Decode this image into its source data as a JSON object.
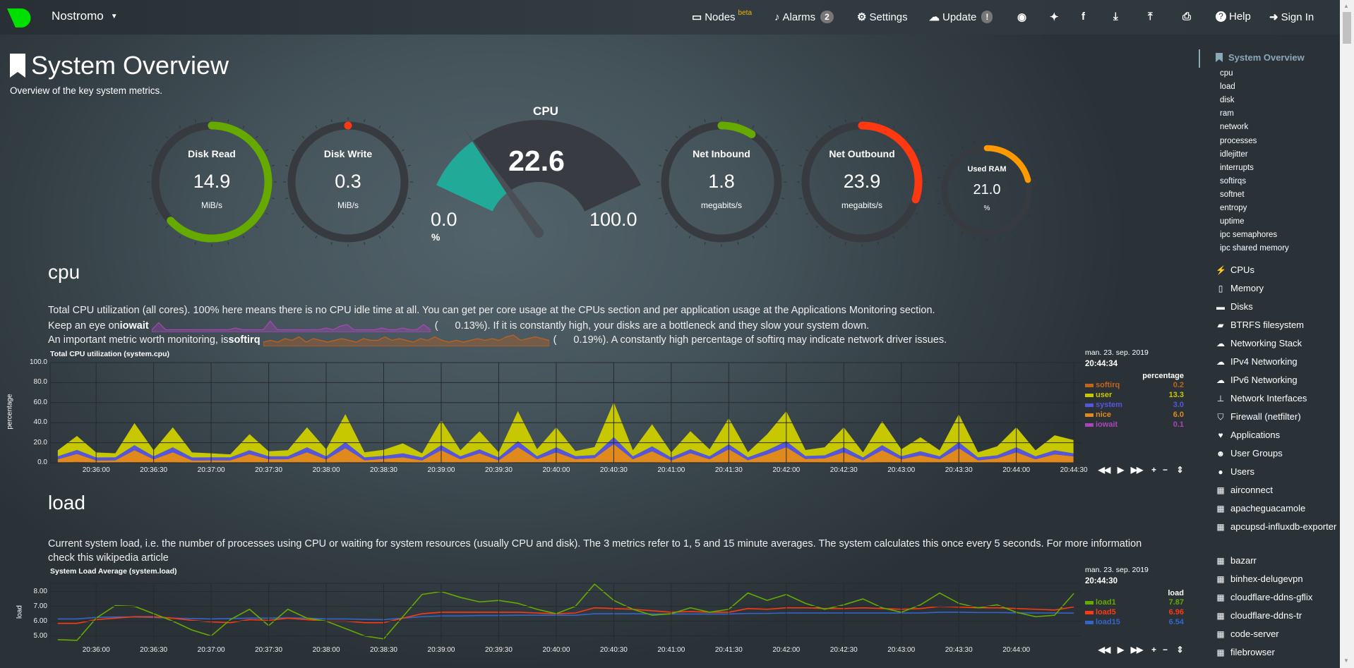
{
  "nav": {
    "brand": "Nostromo",
    "items": [
      {
        "label": "Nodes",
        "sup": "beta",
        "icon": "monitor-icon"
      },
      {
        "label": "Alarms",
        "badge": "2",
        "icon": "bell-icon"
      },
      {
        "label": "Settings",
        "icon": "gear-icon"
      },
      {
        "label": "Update",
        "badge": "!",
        "icon": "cloud-download-icon"
      },
      {
        "label": "",
        "icon": "github-icon"
      },
      {
        "label": "",
        "icon": "twitter-icon"
      },
      {
        "label": "",
        "icon": "facebook-icon"
      },
      {
        "label": "",
        "icon": "download-icon"
      },
      {
        "label": "",
        "icon": "upload-icon"
      },
      {
        "label": "",
        "icon": "print-icon"
      },
      {
        "label": "Help",
        "icon": "question-icon"
      },
      {
        "label": "Sign In",
        "icon": "sign-in-icon"
      }
    ],
    "brand_color": "#00e000"
  },
  "page": {
    "title": "System Overview",
    "subtitle": "Overview of the key system metrics."
  },
  "gauges": [
    {
      "title": "Disk Read",
      "value": "14.9",
      "unit": "MiB/s",
      "fill": 0.63,
      "color": "#66aa00"
    },
    {
      "title": "Disk Write",
      "value": "0.3",
      "unit": "MiB/s",
      "fill": 0.0,
      "color": "#fe3912"
    },
    {
      "title": "Net Inbound",
      "value": "1.8",
      "unit": "megabits/s",
      "fill": 0.09,
      "color": "#66aa00"
    },
    {
      "title": "Net Outbound",
      "value": "23.9",
      "unit": "megabits/s",
      "fill": 0.3,
      "color": "#fe3912"
    },
    {
      "title": "Used RAM",
      "value": "21.0",
      "unit": "%",
      "fill": 0.21,
      "color": "#ff9900"
    }
  ],
  "cpu_gauge": {
    "title": "CPU",
    "value": "22.6",
    "min": "0.0",
    "max": "100.0",
    "unit": "%",
    "percent": 22.6,
    "color": "#22aa99"
  },
  "cpu_section": {
    "heading": "cpu",
    "line1": "Total CPU utilization (all cores). 100% here means there is no CPU idle time at all. You can get per core usage at the CPUs section and per application usage at the Applications Monitoring section.",
    "line2_pre": "Keep an eye on ",
    "line2_bold": "iowait",
    "line2_val": "0.13%",
    "line2_post": "). If it is constantly high, your disks are a bottleneck and they slow your system down.",
    "line3_pre": "An important metric worth monitoring, is ",
    "line3_bold": "softirq",
    "line3_val": "0.19%",
    "line3_post": "). A constantly high percentage of softirq may indicate network driver issues.",
    "paren_open": "(",
    "iowait_spark": [
      0.1,
      0.5,
      0.1,
      0.1,
      0.1,
      0.1,
      0.1,
      0.1,
      0.1,
      0.1,
      0.1,
      0.1,
      0.2,
      0.1,
      0.1,
      0.1,
      0.1,
      0.6,
      0.1,
      0.1,
      0.1,
      0.1,
      0.1,
      0.1,
      0.1,
      0.2,
      0.1,
      0.3,
      0.4,
      0.1,
      0.1,
      0.1,
      0.1,
      0.2,
      0.1,
      0.1,
      0.2,
      0.1,
      0.1,
      0.4,
      0.1
    ],
    "softirq_spark": [
      0.2,
      0.3,
      0.2,
      0.4,
      0.3,
      0.5,
      0.2,
      0.4,
      0.3,
      0.2,
      0.3,
      0.4,
      0.3,
      0.2,
      0.4,
      0.3,
      0.3,
      0.5,
      0.3,
      0.4,
      0.3,
      0.2,
      0.4,
      0.3,
      0.5,
      0.3,
      0.2,
      0.3,
      0.2,
      0.3,
      0.4,
      0.3,
      0.4,
      0.3,
      0.5,
      0.6,
      0.3,
      0.4,
      0.5,
      0.4,
      0.3
    ]
  },
  "load_section": {
    "heading": "load",
    "text1": "Current system load, i.e. the number of processes using CPU or waiting for system resources (usually CPU and disk). The 3 metrics refer to 1, 5 and 15 minute averages. The system calculates this once every 5 seconds. For more information check this",
    "text2": "wikipedia article"
  },
  "chart_data": [
    {
      "type": "area",
      "stacked": true,
      "title": "Total CPU utilization (system.cpu)",
      "ylabel": "percentage",
      "ylim": [
        0,
        100
      ],
      "yticks": [
        "0.0",
        "20.0",
        "40.0",
        "60.0",
        "80.0",
        "100.0"
      ],
      "xticks": [
        "20:36:00",
        "20:36:30",
        "20:37:00",
        "20:37:30",
        "20:38:00",
        "20:38:30",
        "20:39:00",
        "20:39:30",
        "20:40:00",
        "20:40:30",
        "20:41:00",
        "20:41:30",
        "20:42:00",
        "20:42:30",
        "20:43:00",
        "20:43:30",
        "20:44:00",
        "20:44:30"
      ],
      "xrange": [
        "20:35:36",
        "20:44:34"
      ],
      "grid": true,
      "x": [
        "20:35:40",
        "20:35:50",
        "20:36:00",
        "20:36:10",
        "20:36:20",
        "20:36:30",
        "20:36:40",
        "20:36:50",
        "20:37:00",
        "20:37:10",
        "20:37:20",
        "20:37:30",
        "20:37:40",
        "20:37:50",
        "20:38:00",
        "20:38:10",
        "20:38:20",
        "20:38:30",
        "20:38:40",
        "20:38:50",
        "20:39:00",
        "20:39:10",
        "20:39:20",
        "20:39:30",
        "20:39:40",
        "20:39:50",
        "20:40:00",
        "20:40:10",
        "20:40:20",
        "20:40:30",
        "20:40:40",
        "20:40:50",
        "20:41:00",
        "20:41:10",
        "20:41:20",
        "20:41:30",
        "20:41:40",
        "20:41:50",
        "20:42:00",
        "20:42:10",
        "20:42:20",
        "20:42:30",
        "20:42:40",
        "20:42:50",
        "20:43:00",
        "20:43:10",
        "20:43:20",
        "20:43:30",
        "20:43:40",
        "20:43:50",
        "20:44:00",
        "20:44:10",
        "20:44:20",
        "20:44:30"
      ],
      "series": [
        {
          "name": "softirq",
          "color": "#c3621b",
          "last": "0.2",
          "values": [
            0.3,
            0.3,
            0.2,
            0.3,
            0.4,
            0.3,
            0.3,
            0.2,
            0.3,
            0.3,
            0.4,
            0.3,
            0.3,
            0.3,
            0.2,
            0.4,
            0.3,
            0.3,
            0.3,
            0.2,
            0.4,
            0.3,
            0.3,
            0.2,
            0.5,
            0.3,
            0.3,
            0.3,
            0.3,
            0.5,
            0.3,
            0.3,
            0.2,
            0.3,
            0.3,
            0.4,
            0.3,
            0.3,
            0.4,
            0.3,
            0.3,
            0.3,
            0.2,
            0.4,
            0.3,
            0.3,
            0.3,
            0.4,
            0.3,
            0.3,
            0.3,
            0.3,
            0.3,
            0.2
          ]
        },
        {
          "name": "user",
          "color": "#c8c800",
          "last": "13.3",
          "values": [
            6,
            14,
            5,
            4,
            22,
            6,
            20,
            5,
            4,
            3,
            16,
            5,
            6,
            20,
            7,
            28,
            5,
            6,
            10,
            4,
            25,
            6,
            18,
            5,
            30,
            7,
            20,
            5,
            8,
            35,
            6,
            22,
            5,
            18,
            7,
            26,
            5,
            16,
            30,
            6,
            8,
            20,
            5,
            24,
            7,
            14,
            6,
            28,
            5,
            9,
            20,
            6,
            15,
            13.3
          ]
        },
        {
          "name": "system",
          "color": "#5555dd",
          "last": "3.0",
          "values": [
            3,
            4,
            3,
            3,
            5,
            3,
            5,
            3,
            3,
            3,
            4,
            3,
            3,
            5,
            3,
            6,
            3,
            3,
            4,
            3,
            5,
            3,
            4,
            3,
            6,
            3,
            5,
            3,
            3,
            7,
            3,
            5,
            3,
            4,
            3,
            5,
            3,
            4,
            6,
            3,
            3,
            5,
            3,
            5,
            3,
            4,
            3,
            6,
            3,
            3,
            5,
            3,
            4,
            3
          ]
        },
        {
          "name": "nice",
          "color": "#e08a1e",
          "last": "6.0",
          "values": [
            3,
            8,
            2,
            2,
            12,
            3,
            10,
            2,
            2,
            2,
            8,
            3,
            3,
            10,
            3,
            14,
            2,
            3,
            5,
            2,
            12,
            3,
            9,
            2,
            15,
            3,
            10,
            3,
            4,
            18,
            3,
            11,
            2,
            9,
            3,
            13,
            2,
            8,
            15,
            3,
            4,
            10,
            2,
            12,
            3,
            7,
            3,
            14,
            2,
            4,
            10,
            3,
            8,
            6
          ]
        },
        {
          "name": "iowait",
          "color": "#aa44bb",
          "last": "0.1",
          "values": [
            0.1,
            0.5,
            0.1,
            0.1,
            0.1,
            0.1,
            0.1,
            0.1,
            0.1,
            0.1,
            0.1,
            0.1,
            0.2,
            0.1,
            0.1,
            0.1,
            0.1,
            0.6,
            0.1,
            0.1,
            0.1,
            0.1,
            0.1,
            0.1,
            0.1,
            0.2,
            0.1,
            0.3,
            0.4,
            0.1,
            0.1,
            0.1,
            0.1,
            0.2,
            0.1,
            0.1,
            0.2,
            0.1,
            0.1,
            0.4,
            0.1,
            0.1,
            0.1,
            0.1,
            0.1,
            0.1,
            0.1,
            0.1,
            0.1,
            0.1,
            0.1,
            0.1,
            0.1,
            0.1
          ]
        }
      ],
      "legend": {
        "date": "man. 23. sep. 2019",
        "time": "20:44:34",
        "unit": "percentage",
        "placement": "right"
      }
    },
    {
      "type": "line",
      "title": "System Load Average (system.load)",
      "ylabel": "load",
      "ylim": [
        4.55,
        8.55
      ],
      "yticks": [
        "5.00",
        "6.00",
        "7.00",
        "8.00"
      ],
      "xticks": [
        "20:36:00",
        "20:36:30",
        "20:37:00",
        "20:37:30",
        "20:38:00",
        "20:38:30",
        "20:39:00",
        "20:39:30",
        "20:40:00",
        "20:40:30",
        "20:41:00",
        "20:41:30",
        "20:42:00",
        "20:42:30",
        "20:43:00",
        "20:43:30",
        "20:44:00"
      ],
      "xrange": [
        "20:35:36",
        "20:44:34"
      ],
      "grid": true,
      "x": [
        "20:35:40",
        "20:35:50",
        "20:36:00",
        "20:36:10",
        "20:36:20",
        "20:36:30",
        "20:36:40",
        "20:36:50",
        "20:37:00",
        "20:37:10",
        "20:37:20",
        "20:37:30",
        "20:37:40",
        "20:37:50",
        "20:38:00",
        "20:38:10",
        "20:38:20",
        "20:38:30",
        "20:38:40",
        "20:38:50",
        "20:39:00",
        "20:39:10",
        "20:39:20",
        "20:39:30",
        "20:39:40",
        "20:39:50",
        "20:40:00",
        "20:40:10",
        "20:40:20",
        "20:40:30",
        "20:40:40",
        "20:40:50",
        "20:41:00",
        "20:41:10",
        "20:41:20",
        "20:41:30",
        "20:41:40",
        "20:41:50",
        "20:42:00",
        "20:42:10",
        "20:42:20",
        "20:42:30",
        "20:42:40",
        "20:42:50",
        "20:43:00",
        "20:43:10",
        "20:43:20",
        "20:43:30",
        "20:43:40",
        "20:43:50",
        "20:44:00",
        "20:44:10",
        "20:44:20",
        "20:44:30"
      ],
      "series": [
        {
          "name": "load1",
          "color": "#66aa00",
          "last": "7.87",
          "values": [
            4.75,
            4.7,
            6.2,
            7.05,
            7.0,
            6.5,
            6.0,
            5.4,
            5.0,
            6.1,
            6.8,
            5.7,
            6.8,
            6.2,
            6.0,
            5.5,
            5.0,
            4.8,
            6.3,
            7.8,
            8.0,
            7.6,
            7.3,
            7.4,
            7.2,
            6.8,
            6.5,
            7.0,
            8.5,
            7.4,
            6.8,
            6.4,
            6.5,
            6.9,
            6.6,
            6.8,
            7.9,
            7.4,
            7.8,
            7.2,
            6.8,
            7.1,
            7.5,
            6.9,
            6.6,
            7.1,
            7.9,
            7.2,
            6.9,
            7.1,
            6.6,
            6.3,
            6.4,
            7.87
          ]
        },
        {
          "name": "load5",
          "color": "#fe3912",
          "last": "6.96",
          "values": [
            5.85,
            5.85,
            6.1,
            6.2,
            6.3,
            6.3,
            6.2,
            6.05,
            5.95,
            5.9,
            6.1,
            6.05,
            6.2,
            6.1,
            6.0,
            6.0,
            5.9,
            5.9,
            6.2,
            6.5,
            6.6,
            6.6,
            6.6,
            6.6,
            6.6,
            6.55,
            6.5,
            6.55,
            6.9,
            6.85,
            6.8,
            6.7,
            6.6,
            6.65,
            6.6,
            6.6,
            6.85,
            6.8,
            6.9,
            6.9,
            6.85,
            6.85,
            6.9,
            6.85,
            6.8,
            6.85,
            7.0,
            6.95,
            6.9,
            6.9,
            6.85,
            6.8,
            6.75,
            6.96
          ]
        },
        {
          "name": "load15",
          "color": "#3366cc",
          "last": "6.54",
          "values": [
            6.15,
            6.15,
            6.25,
            6.28,
            6.28,
            6.25,
            6.2,
            6.18,
            6.15,
            6.18,
            6.2,
            6.2,
            6.22,
            6.2,
            6.15,
            6.15,
            6.12,
            6.1,
            6.2,
            6.3,
            6.35,
            6.35,
            6.38,
            6.38,
            6.4,
            6.4,
            6.4,
            6.4,
            6.5,
            6.5,
            6.5,
            6.48,
            6.48,
            6.48,
            6.48,
            6.48,
            6.52,
            6.52,
            6.55,
            6.55,
            6.55,
            6.55,
            6.55,
            6.55,
            6.55,
            6.55,
            6.6,
            6.6,
            6.58,
            6.58,
            6.56,
            6.55,
            6.55,
            6.54
          ]
        }
      ],
      "legend": {
        "date": "man. 23. sep. 2019",
        "time": "20:44:30",
        "unit": "load",
        "placement": "right"
      }
    }
  ],
  "controls": {
    "rewind": "◀◀",
    "play": "▶",
    "forward": "▶▶",
    "zoom_in": "+",
    "zoom_out": "−",
    "resize": "⇕"
  },
  "sidebar": {
    "active": "System Overview",
    "sub": [
      "cpu",
      "load",
      "disk",
      "ram",
      "network",
      "processes",
      "idlejitter",
      "interrupts",
      "softirqs",
      "softnet",
      "entropy",
      "uptime",
      "ipc semaphores",
      "ipc shared memory"
    ],
    "main": [
      {
        "label": "CPUs",
        "icon": "bolt-icon"
      },
      {
        "label": "Memory",
        "icon": "memory-icon"
      },
      {
        "label": "Disks",
        "icon": "hdd-icon"
      },
      {
        "label": "BTRFS filesystem",
        "icon": "folder-icon"
      },
      {
        "label": "Networking Stack",
        "icon": "cloud-icon"
      },
      {
        "label": "IPv4 Networking",
        "icon": "cloud-icon"
      },
      {
        "label": "IPv6 Networking",
        "icon": "cloud-icon"
      },
      {
        "label": "Network Interfaces",
        "icon": "sitemap-icon"
      },
      {
        "label": "Firewall (netfilter)",
        "icon": "shield-icon"
      },
      {
        "label": "Applications",
        "icon": "heartbeat-icon"
      },
      {
        "label": "User Groups",
        "icon": "users-icon"
      },
      {
        "label": "Users",
        "icon": "user-icon"
      },
      {
        "label": "airconnect",
        "icon": "grid-icon"
      },
      {
        "label": "apacheguacamole",
        "icon": "grid-icon"
      },
      {
        "label": "apcupsd-influxdb-exporter",
        "icon": "grid-icon"
      },
      {
        "label": "bazarr",
        "icon": "grid-icon"
      },
      {
        "label": "binhex-delugevpn",
        "icon": "grid-icon"
      },
      {
        "label": "cloudflare-ddns-gflix",
        "icon": "grid-icon"
      },
      {
        "label": "cloudflare-ddns-tr",
        "icon": "grid-icon"
      },
      {
        "label": "code-server",
        "icon": "grid-icon"
      },
      {
        "label": "filebrowser",
        "icon": "grid-icon"
      }
    ]
  }
}
